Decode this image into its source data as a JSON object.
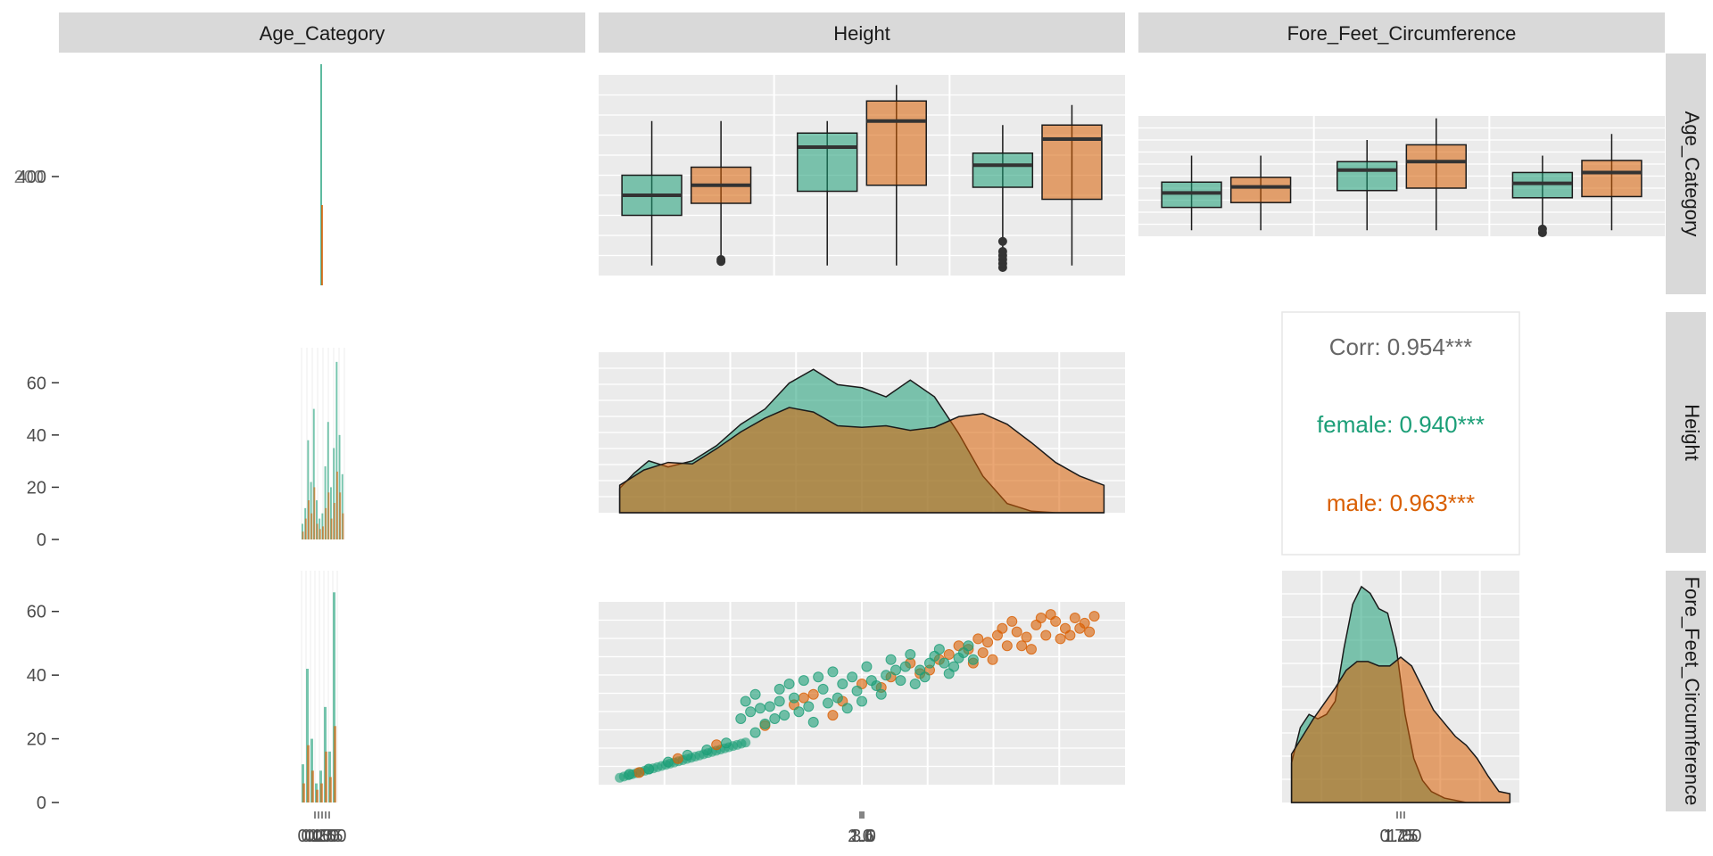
{
  "chart_data": {
    "type": "pairs",
    "variables": [
      "Age_Category",
      "Height",
      "Fore_Feet_Circumference"
    ],
    "colors": {
      "female": "#1b9e77",
      "male": "#d95f02",
      "panel_bg": "#ebebeb",
      "strip_bg": "#d9d9d9"
    },
    "row1": {
      "col1_tick_label": "400",
      "col1_tick_overlap": "200",
      "height_boxes": [
        {
          "group": "female",
          "lo": 0.05,
          "q1": 0.3,
          "med": 0.4,
          "q3": 0.5,
          "hi": 0.77,
          "outliers": []
        },
        {
          "group": "male",
          "lo": 0.05,
          "q1": 0.36,
          "med": 0.45,
          "q3": 0.54,
          "hi": 0.77,
          "outliers": [
            0.07,
            0.08
          ]
        },
        {
          "group": "female",
          "lo": 0.05,
          "q1": 0.42,
          "med": 0.64,
          "q3": 0.71,
          "hi": 0.77,
          "outliers": []
        },
        {
          "group": "male",
          "lo": 0.05,
          "q1": 0.45,
          "med": 0.77,
          "q3": 0.87,
          "hi": 0.95,
          "outliers": []
        },
        {
          "group": "female",
          "lo": 0.05,
          "q1": 0.44,
          "med": 0.55,
          "q3": 0.61,
          "hi": 0.75,
          "outliers": [
            0.04,
            0.06,
            0.08,
            0.1,
            0.12,
            0.17
          ]
        },
        {
          "group": "male",
          "lo": 0.05,
          "q1": 0.38,
          "med": 0.68,
          "q3": 0.75,
          "hi": 0.85,
          "outliers": []
        }
      ],
      "ffc_boxes": [
        {
          "group": "female",
          "lo": 0.05,
          "q1": 0.24,
          "med": 0.36,
          "q3": 0.45,
          "hi": 0.67,
          "outliers": []
        },
        {
          "group": "male",
          "lo": 0.05,
          "q1": 0.28,
          "med": 0.41,
          "q3": 0.49,
          "hi": 0.67,
          "outliers": []
        },
        {
          "group": "female",
          "lo": 0.05,
          "q1": 0.38,
          "med": 0.55,
          "q3": 0.62,
          "hi": 0.8,
          "outliers": []
        },
        {
          "group": "male",
          "lo": 0.05,
          "q1": 0.4,
          "med": 0.62,
          "q3": 0.76,
          "hi": 0.98,
          "outliers": []
        },
        {
          "group": "female",
          "lo": 0.05,
          "q1": 0.32,
          "med": 0.44,
          "q3": 0.53,
          "hi": 0.67,
          "outliers": [
            0.03,
            0.06
          ]
        },
        {
          "group": "male",
          "lo": 0.05,
          "q1": 0.33,
          "med": 0.53,
          "q3": 0.63,
          "hi": 0.85,
          "outliers": []
        }
      ]
    },
    "row2": {
      "col1_y_ticks": [
        "0",
        "20",
        "40",
        "60"
      ],
      "col1_y_values": [
        0,
        20,
        40,
        60
      ],
      "col1_ymax": 70,
      "col1_female": [
        6,
        12,
        38,
        22,
        50,
        15,
        8,
        10,
        28,
        45,
        20,
        35,
        68,
        40,
        25
      ],
      "col1_male": [
        3,
        8,
        15,
        10,
        20,
        6,
        4,
        5,
        12,
        18,
        8,
        14,
        26,
        18,
        10
      ],
      "density_female": [
        [
          0,
          0.16
        ],
        [
          0.03,
          0.26
        ],
        [
          0.06,
          0.34
        ],
        [
          0.1,
          0.3
        ],
        [
          0.15,
          0.34
        ],
        [
          0.2,
          0.44
        ],
        [
          0.25,
          0.58
        ],
        [
          0.3,
          0.68
        ],
        [
          0.35,
          0.85
        ],
        [
          0.4,
          0.94
        ],
        [
          0.45,
          0.84
        ],
        [
          0.5,
          0.82
        ],
        [
          0.55,
          0.76
        ],
        [
          0.6,
          0.87
        ],
        [
          0.65,
          0.76
        ],
        [
          0.7,
          0.52
        ],
        [
          0.75,
          0.24
        ],
        [
          0.8,
          0.06
        ],
        [
          0.85,
          0.01
        ],
        [
          0.9,
          0.0
        ],
        [
          0.95,
          0.0
        ],
        [
          1.0,
          0.0
        ]
      ],
      "density_male": [
        [
          0,
          0.18
        ],
        [
          0.05,
          0.28
        ],
        [
          0.1,
          0.33
        ],
        [
          0.15,
          0.32
        ],
        [
          0.2,
          0.42
        ],
        [
          0.25,
          0.53
        ],
        [
          0.3,
          0.62
        ],
        [
          0.35,
          0.69
        ],
        [
          0.4,
          0.66
        ],
        [
          0.45,
          0.57
        ],
        [
          0.5,
          0.56
        ],
        [
          0.55,
          0.57
        ],
        [
          0.6,
          0.54
        ],
        [
          0.65,
          0.56
        ],
        [
          0.7,
          0.63
        ],
        [
          0.75,
          0.65
        ],
        [
          0.8,
          0.58
        ],
        [
          0.85,
          0.46
        ],
        [
          0.9,
          0.33
        ],
        [
          0.95,
          0.24
        ],
        [
          1.0,
          0.18
        ]
      ],
      "corr_label": "Corr: 0.954***",
      "corr_female": "female: 0.940***",
      "corr_male": "male: 0.963***"
    },
    "row3": {
      "col1_y_ticks": [
        "0",
        "20",
        "40",
        "60"
      ],
      "col1_y_values": [
        0,
        20,
        40,
        60
      ],
      "col1_ymax": 70,
      "col1_female": [
        12,
        42,
        20,
        6,
        10,
        30,
        16,
        66
      ],
      "col1_male": [
        6,
        18,
        10,
        4,
        6,
        16,
        8,
        24
      ],
      "scatter_female": [
        [
          0.02,
          0.06
        ],
        [
          0.06,
          0.09
        ],
        [
          0.1,
          0.13
        ],
        [
          0.14,
          0.17
        ],
        [
          0.18,
          0.2
        ],
        [
          0.22,
          0.24
        ],
        [
          0.26,
          0.48
        ],
        [
          0.27,
          0.42
        ],
        [
          0.28,
          0.52
        ],
        [
          0.3,
          0.35
        ],
        [
          0.31,
          0.45
        ],
        [
          0.33,
          0.55
        ],
        [
          0.34,
          0.4
        ],
        [
          0.36,
          0.5
        ],
        [
          0.38,
          0.6
        ],
        [
          0.39,
          0.45
        ],
        [
          0.4,
          0.36
        ],
        [
          0.42,
          0.55
        ],
        [
          0.44,
          0.65
        ],
        [
          0.45,
          0.5
        ],
        [
          0.46,
          0.58
        ],
        [
          0.48,
          0.62
        ],
        [
          0.5,
          0.48
        ],
        [
          0.51,
          0.68
        ],
        [
          0.53,
          0.57
        ],
        [
          0.55,
          0.63
        ],
        [
          0.56,
          0.72
        ],
        [
          0.58,
          0.6
        ],
        [
          0.6,
          0.75
        ],
        [
          0.62,
          0.66
        ],
        [
          0.64,
          0.7
        ],
        [
          0.66,
          0.78
        ],
        [
          0.68,
          0.64
        ],
        [
          0.7,
          0.73
        ],
        [
          0.72,
          0.8
        ],
        [
          0.28,
          0.3
        ],
        [
          0.32,
          0.38
        ],
        [
          0.37,
          0.42
        ],
        [
          0.43,
          0.47
        ],
        [
          0.49,
          0.54
        ],
        [
          0.54,
          0.52
        ],
        [
          0.59,
          0.68
        ],
        [
          0.63,
          0.62
        ],
        [
          0.67,
          0.7
        ],
        [
          0.71,
          0.76
        ],
        [
          0.35,
          0.58
        ],
        [
          0.41,
          0.62
        ],
        [
          0.47,
          0.44
        ],
        [
          0.52,
          0.6
        ],
        [
          0.57,
          0.66
        ],
        [
          0.61,
          0.58
        ],
        [
          0.65,
          0.74
        ],
        [
          0.69,
          0.68
        ],
        [
          0.73,
          0.72
        ],
        [
          0.25,
          0.38
        ],
        [
          0.29,
          0.44
        ],
        [
          0.33,
          0.48
        ]
      ],
      "scatter_male": [
        [
          0.04,
          0.07
        ],
        [
          0.12,
          0.15
        ],
        [
          0.2,
          0.23
        ],
        [
          0.3,
          0.34
        ],
        [
          0.36,
          0.46
        ],
        [
          0.4,
          0.52
        ],
        [
          0.46,
          0.48
        ],
        [
          0.5,
          0.58
        ],
        [
          0.56,
          0.62
        ],
        [
          0.6,
          0.7
        ],
        [
          0.64,
          0.66
        ],
        [
          0.68,
          0.75
        ],
        [
          0.7,
          0.8
        ],
        [
          0.72,
          0.78
        ],
        [
          0.74,
          0.84
        ],
        [
          0.76,
          0.82
        ],
        [
          0.78,
          0.86
        ],
        [
          0.8,
          0.8
        ],
        [
          0.82,
          0.88
        ],
        [
          0.84,
          0.85
        ],
        [
          0.86,
          0.92
        ],
        [
          0.88,
          0.86
        ],
        [
          0.9,
          0.94
        ],
        [
          0.92,
          0.9
        ],
        [
          0.94,
          0.96
        ],
        [
          0.96,
          0.93
        ],
        [
          0.98,
          0.97
        ],
        [
          0.75,
          0.76
        ],
        [
          0.79,
          0.9
        ],
        [
          0.83,
          0.8
        ],
        [
          0.87,
          0.96
        ],
        [
          0.91,
          0.84
        ],
        [
          0.95,
          0.9
        ],
        [
          0.81,
          0.94
        ],
        [
          0.85,
          0.78
        ],
        [
          0.89,
          0.98
        ],
        [
          0.93,
          0.86
        ],
        [
          0.97,
          0.88
        ],
        [
          0.77,
          0.72
        ],
        [
          0.73,
          0.7
        ],
        [
          0.66,
          0.72
        ],
        [
          0.62,
          0.64
        ],
        [
          0.54,
          0.56
        ],
        [
          0.44,
          0.4
        ],
        [
          0.38,
          0.5
        ]
      ],
      "density_female": [
        [
          0,
          0.18
        ],
        [
          0.04,
          0.34
        ],
        [
          0.08,
          0.4
        ],
        [
          0.12,
          0.38
        ],
        [
          0.16,
          0.4
        ],
        [
          0.2,
          0.46
        ],
        [
          0.24,
          0.7
        ],
        [
          0.28,
          0.9
        ],
        [
          0.32,
          0.98
        ],
        [
          0.36,
          0.95
        ],
        [
          0.4,
          0.88
        ],
        [
          0.44,
          0.86
        ],
        [
          0.48,
          0.7
        ],
        [
          0.52,
          0.4
        ],
        [
          0.56,
          0.2
        ],
        [
          0.6,
          0.1
        ],
        [
          0.64,
          0.05
        ],
        [
          0.7,
          0.02
        ],
        [
          0.8,
          0.0
        ],
        [
          0.9,
          0.0
        ],
        [
          1.0,
          0.0
        ]
      ],
      "density_male": [
        [
          0,
          0.22
        ],
        [
          0.05,
          0.3
        ],
        [
          0.1,
          0.38
        ],
        [
          0.15,
          0.45
        ],
        [
          0.2,
          0.52
        ],
        [
          0.25,
          0.6
        ],
        [
          0.3,
          0.64
        ],
        [
          0.35,
          0.64
        ],
        [
          0.4,
          0.62
        ],
        [
          0.45,
          0.62
        ],
        [
          0.5,
          0.66
        ],
        [
          0.55,
          0.62
        ],
        [
          0.6,
          0.52
        ],
        [
          0.65,
          0.42
        ],
        [
          0.7,
          0.36
        ],
        [
          0.75,
          0.3
        ],
        [
          0.8,
          0.26
        ],
        [
          0.85,
          0.2
        ],
        [
          0.9,
          0.12
        ],
        [
          0.95,
          0.05
        ],
        [
          1.0,
          0.04
        ]
      ]
    },
    "x_axis_labels": {
      "col1": [
        "0.00",
        "0.25",
        "0.50",
        "0.75",
        "1.00"
      ],
      "col2": [
        "2.0",
        "1.6",
        "3.0"
      ],
      "col3": [
        "0.75",
        "1.25",
        "1.00"
      ]
    },
    "strip_labels": {
      "top": [
        "Age_Category",
        "Height",
        "Fore_Feet_Circumference"
      ],
      "right": [
        "Age_Category",
        "Height",
        "Fore_Feet_Circumference"
      ]
    }
  }
}
